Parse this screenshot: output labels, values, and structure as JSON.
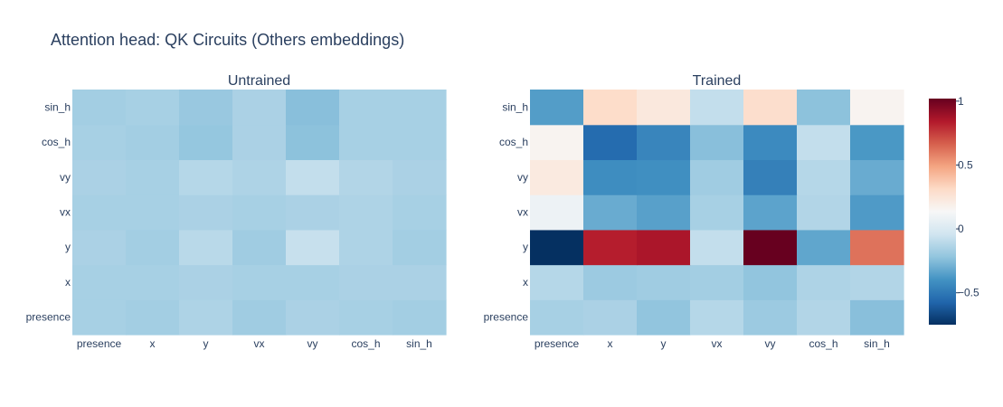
{
  "page": {
    "title": "Attention head: QK Circuits (Others embeddings)"
  },
  "chart_data": [
    {
      "type": "heatmap",
      "title": "Untrained",
      "x_categories": [
        "presence",
        "x",
        "y",
        "vx",
        "vy",
        "cos_h",
        "sin_h"
      ],
      "y_categories": [
        "presence",
        "x",
        "y",
        "vx",
        "vy",
        "cos_h",
        "sin_h"
      ],
      "z": [
        [
          -0.16,
          -0.17,
          -0.14,
          -0.18,
          -0.15,
          -0.16,
          -0.17
        ],
        [
          -0.16,
          -0.16,
          -0.15,
          -0.16,
          -0.16,
          -0.15,
          -0.15
        ],
        [
          -0.15,
          -0.17,
          -0.11,
          -0.18,
          -0.07,
          -0.14,
          -0.17
        ],
        [
          -0.16,
          -0.16,
          -0.15,
          -0.16,
          -0.15,
          -0.14,
          -0.16
        ],
        [
          -0.15,
          -0.16,
          -0.12,
          -0.14,
          -0.08,
          -0.13,
          -0.15
        ],
        [
          -0.16,
          -0.17,
          -0.21,
          -0.15,
          -0.23,
          -0.16,
          -0.16
        ],
        [
          -0.17,
          -0.16,
          -0.2,
          -0.15,
          -0.24,
          -0.16,
          -0.16
        ]
      ]
    },
    {
      "type": "heatmap",
      "title": "Trained",
      "x_categories": [
        "presence",
        "x",
        "y",
        "vx",
        "vy",
        "cos_h",
        "sin_h"
      ],
      "y_categories": [
        "presence",
        "x",
        "y",
        "vx",
        "vy",
        "cos_h",
        "sin_h"
      ],
      "z": [
        [
          -0.16,
          -0.15,
          -0.22,
          -0.12,
          -0.19,
          -0.13,
          -0.24
        ],
        [
          -0.12,
          -0.19,
          -0.18,
          -0.17,
          -0.22,
          -0.14,
          -0.13
        ],
        [
          -0.75,
          0.83,
          0.86,
          -0.08,
          1.02,
          -0.33,
          0.62
        ],
        [
          0.09,
          -0.31,
          -0.35,
          -0.16,
          -0.34,
          -0.13,
          -0.37
        ],
        [
          0.22,
          -0.42,
          -0.41,
          -0.18,
          -0.47,
          -0.12,
          -0.31
        ],
        [
          0.16,
          -0.55,
          -0.45,
          -0.24,
          -0.43,
          -0.08,
          -0.38
        ],
        [
          -0.36,
          0.3,
          0.23,
          -0.08,
          0.29,
          -0.23,
          0.16
        ]
      ]
    }
  ],
  "colorbar": {
    "zmin": -0.75,
    "zmax": 1.02,
    "ticks": [
      {
        "value": 1,
        "label": "1"
      },
      {
        "value": 0.5,
        "label": "0.5"
      },
      {
        "value": 0,
        "label": "0"
      },
      {
        "value": -0.5,
        "label": "−0.5"
      }
    ]
  },
  "colorscale": {
    "name": "RdBu",
    "stops": [
      [
        0.0,
        "#053061"
      ],
      [
        0.1,
        "#2166ac"
      ],
      [
        0.2,
        "#4393c3"
      ],
      [
        0.3,
        "#92c5de"
      ],
      [
        0.4,
        "#d1e5f0"
      ],
      [
        0.5,
        "#f7f7f7"
      ],
      [
        0.6,
        "#fddbc7"
      ],
      [
        0.7,
        "#f4a582"
      ],
      [
        0.8,
        "#d6604d"
      ],
      [
        0.9,
        "#b2182b"
      ],
      [
        1.0,
        "#67001f"
      ]
    ]
  }
}
